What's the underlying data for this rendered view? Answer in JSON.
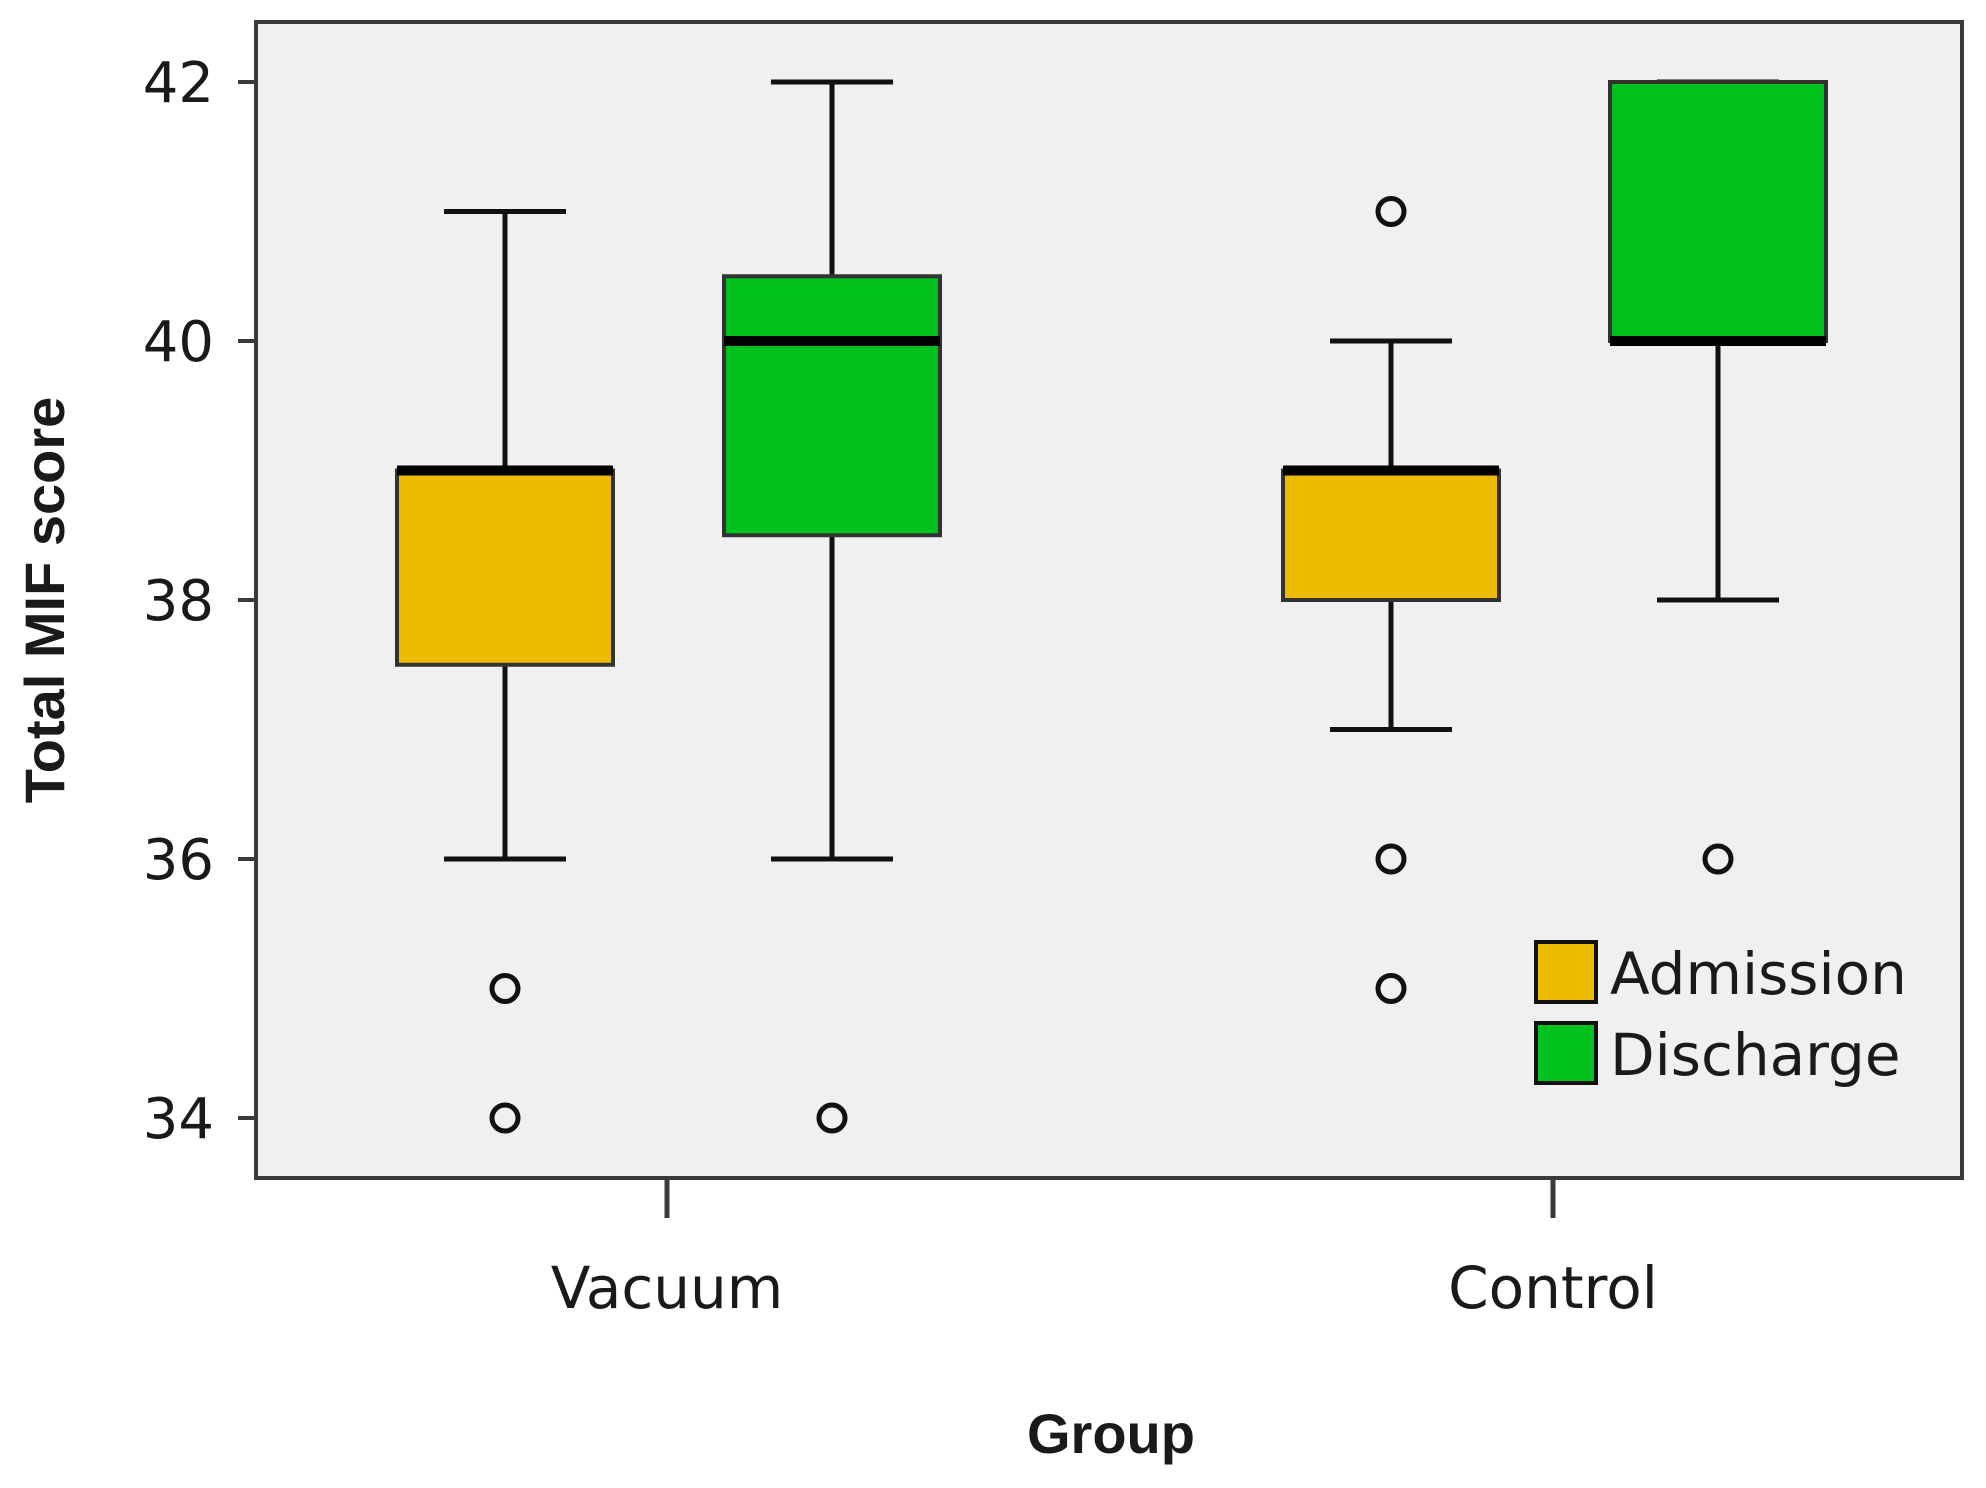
{
  "chart_data": {
    "type": "boxplot",
    "xlabel": "Group",
    "ylabel": "Total MIF score",
    "ylim": [
      33.6,
      42.45
    ],
    "yticks": [
      34,
      36,
      38,
      40,
      42
    ],
    "categories": [
      "Vacuum",
      "Control"
    ],
    "legend": {
      "position": "bottom-right"
    },
    "series": [
      {
        "name": "Admission",
        "color": "#EDBC00",
        "boxes": [
          {
            "category": "Vacuum",
            "whisker_low": 36,
            "q1": 37.5,
            "median": 39,
            "q3": 39,
            "whisker_high": 41,
            "outliers": [
              35,
              34
            ]
          },
          {
            "category": "Control",
            "whisker_low": 37,
            "q1": 38,
            "median": 39,
            "q3": 39,
            "whisker_high": 40,
            "outliers": [
              41,
              36,
              35
            ]
          }
        ]
      },
      {
        "name": "Discharge",
        "color": "#00C21E",
        "boxes": [
          {
            "category": "Vacuum",
            "whisker_low": 36,
            "q1": 38.5,
            "median": 40,
            "q3": 40.5,
            "whisker_high": 42,
            "outliers": [
              34
            ]
          },
          {
            "category": "Control",
            "whisker_low": 38,
            "q1": 40,
            "median": 40,
            "q3": 42,
            "whisker_high": 42,
            "outliers": [
              36
            ]
          }
        ]
      }
    ]
  }
}
